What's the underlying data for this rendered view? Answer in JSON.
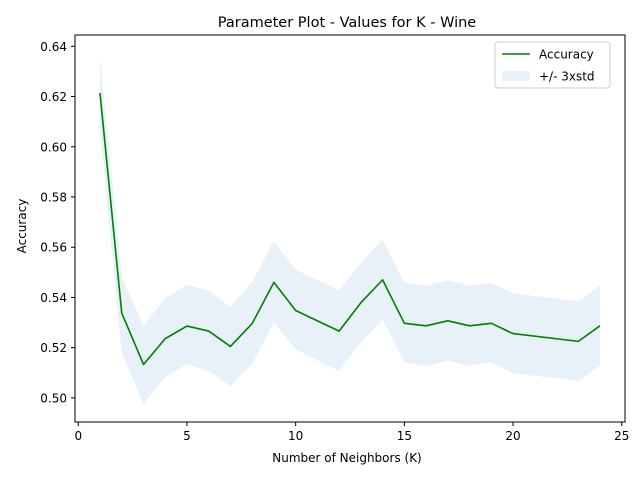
{
  "chart_data": {
    "type": "line",
    "title": "Parameter Plot - Values for K - Wine",
    "xlabel": "Number of Neighbors (K)",
    "ylabel": "Accuracy",
    "xlim": [
      -0.15,
      25.15
    ],
    "ylim": [
      0.4904,
      0.6445
    ],
    "x_ticks": [
      0,
      5,
      10,
      15,
      20,
      25
    ],
    "x_tick_labels": [
      "0",
      "5",
      "10",
      "15",
      "20",
      "25"
    ],
    "y_ticks": [
      0.5,
      0.52,
      0.54,
      0.56,
      0.58,
      0.6,
      0.62,
      0.64
    ],
    "y_tick_labels": [
      "0.50",
      "0.52",
      "0.54",
      "0.56",
      "0.58",
      "0.60",
      "0.62",
      "0.64"
    ],
    "grid": false,
    "legend_position": "top-right",
    "x": [
      1,
      2,
      3,
      4,
      5,
      6,
      7,
      8,
      9,
      10,
      12,
      13,
      14,
      15,
      16,
      17,
      18,
      19,
      20,
      23,
      24
    ],
    "series": [
      {
        "name": "Accuracy",
        "color": "#008000",
        "values": [
          0.6214,
          0.5338,
          0.5133,
          0.5236,
          0.5286,
          0.5266,
          0.5205,
          0.5296,
          0.546,
          0.5348,
          0.5266,
          0.5379,
          0.547,
          0.5297,
          0.5287,
          0.5307,
          0.5287,
          0.5297,
          0.5256,
          0.5225,
          0.5287
        ]
      }
    ],
    "band": {
      "name": "+/- 3xstd",
      "color": "#e8f0f8",
      "upper": [
        0.6357,
        0.548,
        0.5287,
        0.5398,
        0.545,
        0.5428,
        0.5362,
        0.5462,
        0.5624,
        0.551,
        0.5428,
        0.5537,
        0.5631,
        0.5458,
        0.5448,
        0.5468,
        0.5448,
        0.5458,
        0.5416,
        0.5385,
        0.5448
      ],
      "lower": [
        0.6071,
        0.518,
        0.4978,
        0.5083,
        0.5135,
        0.5106,
        0.5048,
        0.5136,
        0.53,
        0.5193,
        0.5107,
        0.5221,
        0.5312,
        0.5142,
        0.5128,
        0.5148,
        0.5128,
        0.5142,
        0.5098,
        0.5068,
        0.5128
      ]
    }
  }
}
